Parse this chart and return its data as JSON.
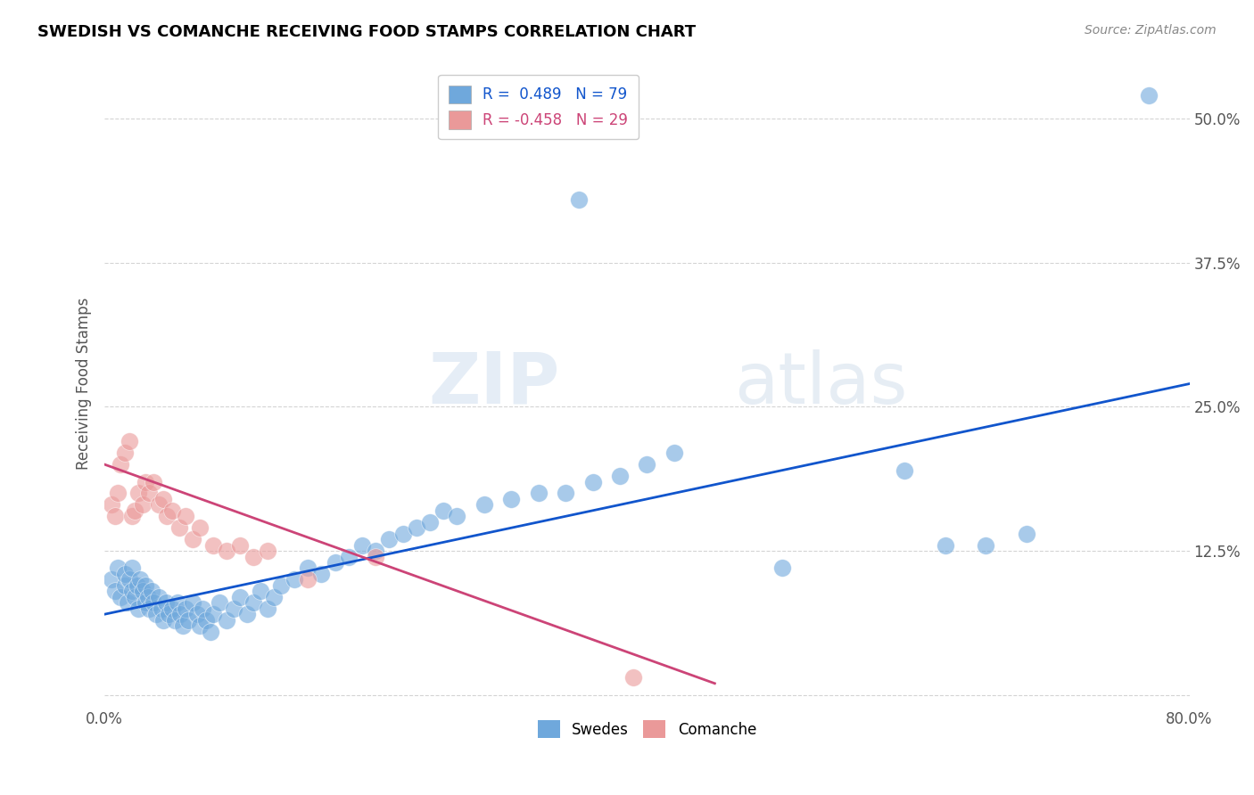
{
  "title": "SWEDISH VS COMANCHE RECEIVING FOOD STAMPS CORRELATION CHART",
  "source": "Source: ZipAtlas.com",
  "ylabel": "Receiving Food Stamps",
  "xlim": [
    0.0,
    0.8
  ],
  "ylim": [
    -0.01,
    0.55
  ],
  "ytick_vals": [
    0.0,
    0.125,
    0.25,
    0.375,
    0.5
  ],
  "ytick_labels": [
    "",
    "12.5%",
    "25.0%",
    "37.5%",
    "50.0%"
  ],
  "xtick_vals": [
    0.0,
    0.1,
    0.2,
    0.3,
    0.4,
    0.5,
    0.6,
    0.7,
    0.8
  ],
  "xtick_labels": [
    "0.0%",
    "",
    "",
    "",
    "",
    "",
    "",
    "",
    "80.0%"
  ],
  "legend_label1": "R =  0.489   N = 79",
  "legend_label2": "R = -0.458   N = 29",
  "legend_sublabel1": "Swedes",
  "legend_sublabel2": "Comanche",
  "swedes_color": "#6fa8dc",
  "comanche_color": "#ea9999",
  "line_blue": "#1155cc",
  "line_pink": "#cc4477",
  "background_color": "#ffffff",
  "grid_color": "#aaaaaa",
  "title_color": "#000000",
  "swedes_x": [
    0.005,
    0.008,
    0.01,
    0.012,
    0.015,
    0.015,
    0.017,
    0.018,
    0.02,
    0.02,
    0.022,
    0.024,
    0.025,
    0.026,
    0.028,
    0.03,
    0.03,
    0.032,
    0.033,
    0.035,
    0.036,
    0.038,
    0.04,
    0.042,
    0.043,
    0.045,
    0.047,
    0.05,
    0.052,
    0.054,
    0.056,
    0.058,
    0.06,
    0.062,
    0.065,
    0.068,
    0.07,
    0.072,
    0.075,
    0.078,
    0.08,
    0.085,
    0.09,
    0.095,
    0.1,
    0.105,
    0.11,
    0.115,
    0.12,
    0.125,
    0.13,
    0.14,
    0.15,
    0.16,
    0.17,
    0.18,
    0.19,
    0.2,
    0.21,
    0.22,
    0.23,
    0.24,
    0.25,
    0.26,
    0.28,
    0.3,
    0.32,
    0.34,
    0.36,
    0.38,
    0.4,
    0.42,
    0.5,
    0.59,
    0.62,
    0.65,
    0.68,
    0.77,
    0.35
  ],
  "swedes_y": [
    0.1,
    0.09,
    0.11,
    0.085,
    0.095,
    0.105,
    0.08,
    0.1,
    0.09,
    0.11,
    0.085,
    0.095,
    0.075,
    0.1,
    0.09,
    0.08,
    0.095,
    0.085,
    0.075,
    0.09,
    0.08,
    0.07,
    0.085,
    0.075,
    0.065,
    0.08,
    0.07,
    0.075,
    0.065,
    0.08,
    0.07,
    0.06,
    0.075,
    0.065,
    0.08,
    0.07,
    0.06,
    0.075,
    0.065,
    0.055,
    0.07,
    0.08,
    0.065,
    0.075,
    0.085,
    0.07,
    0.08,
    0.09,
    0.075,
    0.085,
    0.095,
    0.1,
    0.11,
    0.105,
    0.115,
    0.12,
    0.13,
    0.125,
    0.135,
    0.14,
    0.145,
    0.15,
    0.16,
    0.155,
    0.165,
    0.17,
    0.175,
    0.175,
    0.185,
    0.19,
    0.2,
    0.21,
    0.11,
    0.195,
    0.13,
    0.13,
    0.14,
    0.52,
    0.43
  ],
  "comanche_x": [
    0.005,
    0.008,
    0.01,
    0.012,
    0.015,
    0.018,
    0.02,
    0.022,
    0.025,
    0.028,
    0.03,
    0.033,
    0.036,
    0.04,
    0.043,
    0.046,
    0.05,
    0.055,
    0.06,
    0.065,
    0.07,
    0.08,
    0.09,
    0.1,
    0.11,
    0.12,
    0.15,
    0.2,
    0.39
  ],
  "comanche_y": [
    0.165,
    0.155,
    0.175,
    0.2,
    0.21,
    0.22,
    0.155,
    0.16,
    0.175,
    0.165,
    0.185,
    0.175,
    0.185,
    0.165,
    0.17,
    0.155,
    0.16,
    0.145,
    0.155,
    0.135,
    0.145,
    0.13,
    0.125,
    0.13,
    0.12,
    0.125,
    0.1,
    0.12,
    0.015
  ],
  "blue_line_x": [
    0.0,
    0.8
  ],
  "blue_line_y": [
    0.07,
    0.27
  ],
  "pink_line_x": [
    0.0,
    0.45
  ],
  "pink_line_y": [
    0.2,
    0.01
  ]
}
